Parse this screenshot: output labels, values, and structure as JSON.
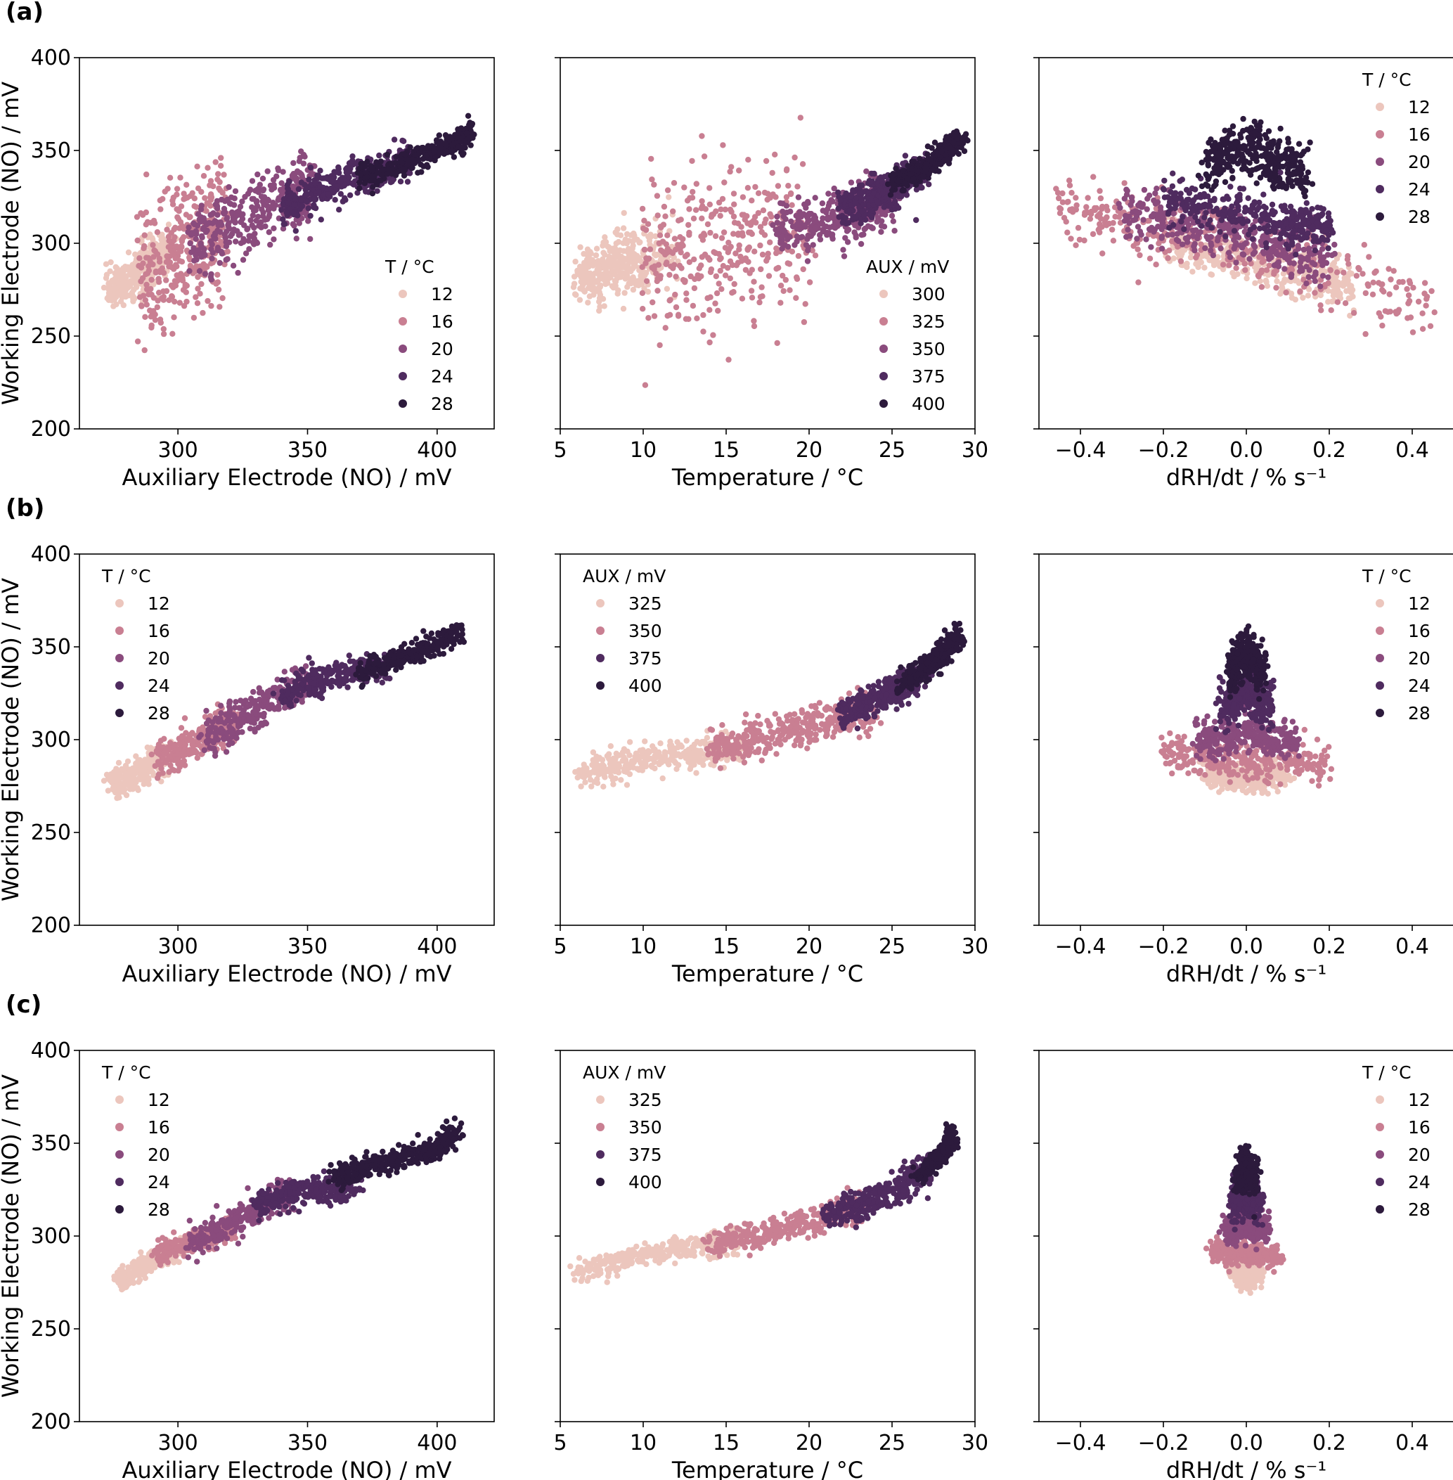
{
  "figure": {
    "rows": [
      {
        "label": "(a)"
      },
      {
        "label": "(b)"
      },
      {
        "label": "(c)"
      }
    ]
  },
  "colors": {
    "temperature_scale": [
      "#ecc6bd",
      "#c97f92",
      "#8a4b7d",
      "#4f2b5f",
      "#2c1a3c"
    ]
  },
  "chart_data": [
    {
      "type": "scatter",
      "row": 0,
      "col": 0,
      "xlabel": "Auxiliary Electrode (NO)  /  mV",
      "ylabel": "Working Electrode (NO)  /  mV",
      "xlim": [
        262,
        422
      ],
      "ylim": [
        200,
        400
      ],
      "xticks": [
        "300",
        "350",
        "400"
      ],
      "yticks": [
        "200",
        "250",
        "300",
        "350",
        "400"
      ],
      "legend": {
        "title": "T  /  °C",
        "position": "lower-right",
        "entries": [
          "12",
          "16",
          "20",
          "24",
          "28"
        ]
      },
      "series": [
        {
          "name": "12",
          "x": [
            273,
            278,
            283,
            288,
            292,
            296
          ],
          "y": [
            276,
            278,
            282,
            288,
            292,
            296
          ],
          "spread": 6
        },
        {
          "name": "16",
          "x": [
            285,
            293,
            300,
            306,
            312,
            318
          ],
          "y": [
            290,
            284,
            293,
            298,
            305,
            312
          ],
          "spread": 18
        },
        {
          "name": "20",
          "x": [
            305,
            315,
            325,
            335,
            345,
            352
          ],
          "y": [
            300,
            306,
            312,
            320,
            326,
            330
          ],
          "spread": 10
        },
        {
          "name": "24",
          "x": [
            340,
            350,
            360,
            370,
            380,
            390
          ],
          "y": [
            320,
            326,
            331,
            337,
            340,
            344
          ],
          "spread": 5
        },
        {
          "name": "28",
          "x": [
            370,
            380,
            390,
            400,
            408,
            414
          ],
          "y": [
            336,
            340,
            345,
            350,
            355,
            360
          ],
          "spread": 3
        }
      ]
    },
    {
      "type": "scatter",
      "row": 0,
      "col": 1,
      "xlabel": "Temperature  /  °C",
      "ylabel": "",
      "xlim": [
        5,
        30
      ],
      "ylim": [
        200,
        400
      ],
      "xticks": [
        "5",
        "10",
        "15",
        "20",
        "25",
        "30"
      ],
      "yticks": [
        "200",
        "250",
        "300",
        "350",
        "400"
      ],
      "legend": {
        "title": "AUX  /  mV",
        "position": "lower-right",
        "entries": [
          "300",
          "325",
          "350",
          "375",
          "400"
        ]
      },
      "series": [
        {
          "name": "300",
          "x": [
            6,
            7,
            8,
            9,
            10,
            12
          ],
          "y": [
            281,
            283,
            287,
            290,
            292,
            296
          ],
          "spread": 8
        },
        {
          "name": "325",
          "x": [
            10,
            12,
            14,
            16,
            18,
            20
          ],
          "y": [
            292,
            294,
            297,
            300,
            304,
            308
          ],
          "spread": 22
        },
        {
          "name": "350",
          "x": [
            18,
            20,
            22,
            23,
            24,
            25
          ],
          "y": [
            306,
            310,
            314,
            317,
            320,
            323
          ],
          "spread": 7
        },
        {
          "name": "375",
          "x": [
            22,
            23,
            24,
            25,
            26,
            27
          ],
          "y": [
            318,
            322,
            326,
            330,
            335,
            340
          ],
          "spread": 5
        },
        {
          "name": "400",
          "x": [
            25,
            26,
            27,
            28,
            28.5,
            29.2
          ],
          "y": [
            332,
            337,
            342,
            347,
            352,
            358
          ],
          "spread": 3
        }
      ]
    },
    {
      "type": "scatter",
      "row": 0,
      "col": 2,
      "xlabel": "dRH/dt  /  % s⁻¹",
      "ylabel": "",
      "xlim": [
        -0.5,
        0.5
      ],
      "ylim": [
        200,
        400
      ],
      "xticks": [
        "−0.4",
        "−0.2",
        "0.0",
        "0.2",
        "0.4"
      ],
      "yticks": [
        "200",
        "250",
        "300",
        "350",
        "400"
      ],
      "legend": {
        "title": "T  /  °C",
        "position": "upper-right",
        "entries": [
          "12",
          "16",
          "20",
          "24",
          "28"
        ]
      },
      "series": [
        {
          "name": "12",
          "x": [
            -0.2,
            -0.1,
            0.0,
            0.1,
            0.2,
            0.25
          ],
          "y": [
            300,
            295,
            290,
            284,
            280,
            276
          ],
          "spread": 6
        },
        {
          "name": "16",
          "x": [
            -0.45,
            -0.3,
            -0.15,
            0.0,
            0.2,
            0.45
          ],
          "y": [
            322,
            312,
            305,
            296,
            284,
            264
          ],
          "spread": 9
        },
        {
          "name": "20",
          "x": [
            -0.3,
            -0.2,
            -0.1,
            0.0,
            0.1,
            0.2
          ],
          "y": [
            318,
            313,
            308,
            303,
            297,
            290
          ],
          "spread": 7
        },
        {
          "name": "24",
          "x": [
            -0.2,
            -0.1,
            0.0,
            0.1,
            0.15,
            0.2
          ],
          "y": [
            324,
            320,
            316,
            312,
            309,
            306
          ],
          "spread": 6
        },
        {
          "name": "28",
          "x": [
            -0.1,
            -0.05,
            0.0,
            0.05,
            0.1,
            0.15
          ],
          "y": [
            340,
            348,
            353,
            346,
            340,
            336
          ],
          "spread": 7
        }
      ]
    },
    {
      "type": "scatter",
      "row": 1,
      "col": 0,
      "xlabel": "Auxiliary Electrode (NO)  /  mV",
      "ylabel": "Working Electrode (NO)  /  mV",
      "xlim": [
        262,
        422
      ],
      "ylim": [
        200,
        400
      ],
      "xticks": [
        "300",
        "350",
        "400"
      ],
      "yticks": [
        "200",
        "250",
        "300",
        "350",
        "400"
      ],
      "legend": {
        "title": "T  /  °C",
        "position": "upper-left",
        "entries": [
          "12",
          "16",
          "20",
          "24",
          "28"
        ]
      },
      "series": [
        {
          "name": "12",
          "x": [
            274,
            280,
            286,
            292,
            297
          ],
          "y": [
            276,
            279,
            283,
            288,
            292
          ],
          "spread": 4
        },
        {
          "name": "16",
          "x": [
            292,
            300,
            308,
            316,
            324
          ],
          "y": [
            290,
            294,
            299,
            304,
            310
          ],
          "spread": 5
        },
        {
          "name": "20",
          "x": [
            310,
            320,
            330,
            340,
            350
          ],
          "y": [
            300,
            308,
            316,
            324,
            330
          ],
          "spread": 5
        },
        {
          "name": "24",
          "x": [
            340,
            350,
            360,
            370,
            380
          ],
          "y": [
            324,
            330,
            334,
            337,
            340
          ],
          "spread": 4
        },
        {
          "name": "28",
          "x": [
            370,
            380,
            390,
            400,
            410
          ],
          "y": [
            336,
            341,
            346,
            352,
            358
          ],
          "spread": 3
        }
      ]
    },
    {
      "type": "scatter",
      "row": 1,
      "col": 1,
      "xlabel": "Temperature  /  °C",
      "ylabel": "",
      "xlim": [
        5,
        30
      ],
      "ylim": [
        200,
        400
      ],
      "xticks": [
        "5",
        "10",
        "15",
        "20",
        "25",
        "30"
      ],
      "yticks": [
        "200",
        "250",
        "300",
        "350",
        "400"
      ],
      "legend": {
        "title": "AUX  /  mV",
        "position": "upper-left",
        "entries": [
          "325",
          "350",
          "375",
          "400"
        ]
      },
      "series": [
        {
          "name": "325",
          "x": [
            6,
            8,
            10,
            12,
            14,
            16
          ],
          "y": [
            281,
            285,
            289,
            292,
            294,
            296
          ],
          "spread": 4
        },
        {
          "name": "350",
          "x": [
            14,
            16,
            18,
            20,
            22,
            24
          ],
          "y": [
            296,
            299,
            303,
            307,
            312,
            318
          ],
          "spread": 5
        },
        {
          "name": "375",
          "x": [
            22,
            23,
            24,
            25,
            26,
            27
          ],
          "y": [
            314,
            318,
            322,
            326,
            331,
            336
          ],
          "spread": 4
        },
        {
          "name": "400",
          "x": [
            25.5,
            26.5,
            27.3,
            28,
            28.6,
            29
          ],
          "y": [
            330,
            336,
            341,
            346,
            351,
            356
          ],
          "spread": 3
        }
      ]
    },
    {
      "type": "scatter",
      "row": 1,
      "col": 2,
      "xlabel": "dRH/dt  /  % s⁻¹",
      "ylabel": "",
      "xlim": [
        -0.5,
        0.5
      ],
      "ylim": [
        200,
        400
      ],
      "xticks": [
        "−0.4",
        "−0.2",
        "0.0",
        "0.2",
        "0.4"
      ],
      "yticks": [
        "200",
        "250",
        "300",
        "350",
        "400"
      ],
      "legend": {
        "title": "T  /  °C",
        "position": "upper-right",
        "entries": [
          "12",
          "16",
          "20",
          "24",
          "28"
        ]
      },
      "series": [
        {
          "name": "12",
          "x": [
            -0.1,
            -0.05,
            0.0,
            0.05,
            0.1
          ],
          "y": [
            282,
            280,
            278,
            280,
            283
          ],
          "spread": 4
        },
        {
          "name": "16",
          "x": [
            -0.2,
            -0.1,
            0.0,
            0.1,
            0.2
          ],
          "y": [
            294,
            290,
            288,
            290,
            286
          ],
          "spread": 5
        },
        {
          "name": "20",
          "x": [
            -0.12,
            -0.06,
            0.0,
            0.06,
            0.12
          ],
          "y": [
            302,
            300,
            305,
            300,
            298
          ],
          "spread": 5
        },
        {
          "name": "24",
          "x": [
            -0.06,
            -0.03,
            0.0,
            0.03,
            0.06
          ],
          "y": [
            318,
            322,
            326,
            322,
            318
          ],
          "spread": 6
        },
        {
          "name": "28",
          "x": [
            -0.04,
            -0.02,
            0.0,
            0.02,
            0.04
          ],
          "y": [
            335,
            342,
            348,
            342,
            335
          ],
          "spread": 6
        }
      ]
    },
    {
      "type": "scatter",
      "row": 2,
      "col": 0,
      "xlabel": "Auxiliary Electrode (NO)  /  mV",
      "ylabel": "Working Electrode (NO)  /  mV",
      "xlim": [
        262,
        422
      ],
      "ylim": [
        200,
        400
      ],
      "xticks": [
        "300",
        "350",
        "400"
      ],
      "yticks": [
        "200",
        "250",
        "300",
        "350",
        "400"
      ],
      "legend": {
        "title": "T  /  °C",
        "position": "upper-left",
        "entries": [
          "12",
          "16",
          "20",
          "24",
          "28"
        ]
      },
      "series": [
        {
          "name": "12",
          "x": [
            277,
            284,
            290,
            296,
            302
          ],
          "y": [
            276,
            281,
            286,
            290,
            294
          ],
          "spread": 3
        },
        {
          "name": "16",
          "x": [
            292,
            300,
            308,
            316,
            322
          ],
          "y": [
            290,
            294,
            298,
            302,
            306
          ],
          "spread": 3
        },
        {
          "name": "20",
          "x": [
            305,
            315,
            325,
            335,
            343
          ],
          "y": [
            296,
            302,
            310,
            318,
            323
          ],
          "spread": 4
        },
        {
          "name": "24",
          "x": [
            330,
            340,
            350,
            360,
            370
          ],
          "y": [
            316,
            322,
            326,
            324,
            330
          ],
          "spread": 4
        },
        {
          "name": "28",
          "x": [
            360,
            370,
            380,
            390,
            400,
            408
          ],
          "y": [
            330,
            336,
            340,
            343,
            347,
            357
          ],
          "spread": 3
        }
      ]
    },
    {
      "type": "scatter",
      "row": 2,
      "col": 1,
      "xlabel": "Temperature  /  °C",
      "ylabel": "",
      "xlim": [
        5,
        30
      ],
      "ylim": [
        200,
        400
      ],
      "xticks": [
        "5",
        "10",
        "15",
        "20",
        "25",
        "30"
      ],
      "yticks": [
        "200",
        "250",
        "300",
        "350",
        "400"
      ],
      "legend": {
        "title": "AUX  /  mV",
        "position": "upper-left",
        "entries": [
          "325",
          "350",
          "375",
          "400"
        ]
      },
      "series": [
        {
          "name": "325",
          "x": [
            6,
            8,
            10,
            12,
            14,
            16
          ],
          "y": [
            281,
            285,
            290,
            293,
            295,
            297
          ],
          "spread": 3
        },
        {
          "name": "350",
          "x": [
            14,
            16,
            18,
            20,
            22,
            23
          ],
          "y": [
            296,
            299,
            303,
            307,
            312,
            315
          ],
          "spread": 4
        },
        {
          "name": "375",
          "x": [
            21,
            22.5,
            24,
            25.5,
            26.5,
            27.5
          ],
          "y": [
            310,
            315,
            320,
            326,
            332,
            340
          ],
          "spread": 4
        },
        {
          "name": "400",
          "x": [
            26.5,
            27.3,
            28,
            28.4,
            28.6
          ],
          "y": [
            332,
            338,
            344,
            348,
            357
          ],
          "spread": 2
        }
      ]
    },
    {
      "type": "scatter",
      "row": 2,
      "col": 2,
      "xlabel": "dRH/dt  /  % s⁻¹",
      "ylabel": "",
      "xlim": [
        -0.5,
        0.5
      ],
      "ylim": [
        200,
        400
      ],
      "xticks": [
        "−0.4",
        "−0.2",
        "0.0",
        "0.2",
        "0.4"
      ],
      "yticks": [
        "200",
        "250",
        "300",
        "350",
        "400"
      ],
      "legend": {
        "title": "T  /  °C",
        "position": "upper-right",
        "entries": [
          "12",
          "16",
          "20",
          "24",
          "28"
        ]
      },
      "series": [
        {
          "name": "12",
          "x": [
            -0.03,
            -0.01,
            0.0,
            0.01,
            0.03
          ],
          "y": [
            282,
            279,
            277,
            279,
            282
          ],
          "spread": 3
        },
        {
          "name": "16",
          "x": [
            -0.08,
            -0.04,
            0.0,
            0.04,
            0.08
          ],
          "y": [
            293,
            290,
            291,
            290,
            288
          ],
          "spread": 3
        },
        {
          "name": "20",
          "x": [
            -0.05,
            -0.02,
            0.0,
            0.02,
            0.05
          ],
          "y": [
            302,
            305,
            306,
            305,
            302
          ],
          "spread": 4
        },
        {
          "name": "24",
          "x": [
            -0.03,
            -0.015,
            0.0,
            0.015,
            0.03
          ],
          "y": [
            316,
            320,
            322,
            320,
            316
          ],
          "spread": 5
        },
        {
          "name": "28",
          "x": [
            -0.02,
            -0.01,
            0.0,
            0.01,
            0.02
          ],
          "y": [
            330,
            336,
            340,
            336,
            330
          ],
          "spread": 5
        }
      ]
    }
  ]
}
